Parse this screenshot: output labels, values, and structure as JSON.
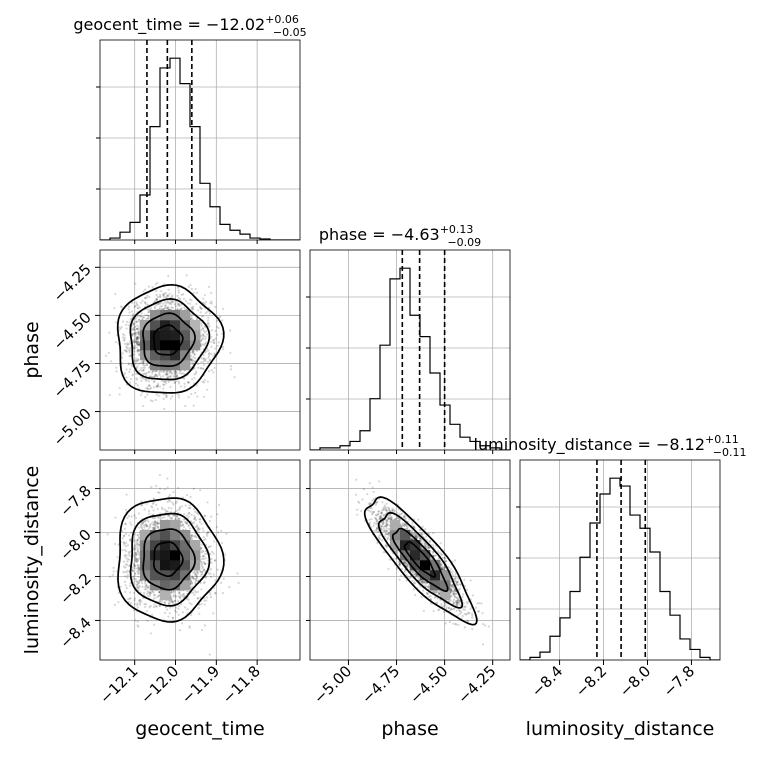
{
  "chart_data": {
    "type": "corner",
    "parameters": [
      "geocent_time",
      "phase",
      "luminosity_distance"
    ],
    "axis_labels": {
      "geocent_time": "geocent_time",
      "phase": "phase",
      "luminosity_distance": "luminosity_distance"
    },
    "titles": [
      {
        "param": "geocent_time",
        "prefix": "geocent_time = ",
        "median": "−12.02",
        "plus": "+0.06",
        "minus": "−0.05"
      },
      {
        "param": "phase",
        "prefix": "phase = ",
        "median": "−4.63",
        "plus": "+0.13",
        "minus": "−0.09"
      },
      {
        "param": "luminosity_distance",
        "prefix": "luminosity_distance = ",
        "median": "−8.12",
        "plus": "+0.11",
        "minus": "−0.11"
      }
    ],
    "ranges": {
      "geocent_time": [
        -12.185,
        -11.695
      ],
      "phase": [
        -5.2,
        -4.16
      ],
      "luminosity_distance": [
        -8.58,
        -7.67
      ]
    },
    "ticks": {
      "geocent_time": [
        {
          "v": -12.1,
          "label": "−12.1"
        },
        {
          "v": -12.0,
          "label": "−12.0"
        },
        {
          "v": -11.9,
          "label": "−11.9"
        },
        {
          "v": -11.8,
          "label": "−11.8"
        }
      ],
      "phase": [
        {
          "v": -5.0,
          "label": "−5.00"
        },
        {
          "v": -4.75,
          "label": "−4.75"
        },
        {
          "v": -4.5,
          "label": "−4.50"
        },
        {
          "v": -4.25,
          "label": "−4.25"
        }
      ],
      "luminosity_distance": [
        {
          "v": -8.4,
          "label": "−8.4"
        },
        {
          "v": -8.2,
          "label": "−8.2"
        },
        {
          "v": -8.0,
          "label": "−8.0"
        },
        {
          "v": -7.8,
          "label": "−7.8"
        }
      ]
    },
    "quantile_lines": {
      "geocent_time": [
        -12.07,
        -12.02,
        -11.96
      ],
      "phase": [
        -4.72,
        -4.63,
        -4.5
      ],
      "luminosity_distance": [
        -8.23,
        -8.12,
        -8.01
      ]
    },
    "histograms": {
      "geocent_time": {
        "edges_start": -12.185,
        "bin_width": 0.0245,
        "counts": [
          0,
          1,
          4,
          9,
          23,
          58,
          88,
          93,
          80,
          58,
          29,
          17,
          8,
          5,
          3,
          1,
          0.5,
          0,
          0,
          0
        ]
      },
      "phase": {
        "edges_start": -5.2,
        "bin_width": 0.052,
        "counts": [
          0,
          1,
          1,
          2,
          4,
          9,
          24,
          49,
          80,
          85,
          63,
          53,
          36,
          21,
          12,
          6,
          4,
          2,
          1,
          0
        ]
      },
      "luminosity_distance": {
        "edges_start": -8.58,
        "bin_width": 0.0455,
        "counts": [
          0,
          1,
          3,
          9,
          16,
          26,
          39,
          52,
          63,
          69,
          66,
          55,
          50,
          41,
          26,
          17,
          8,
          4,
          1,
          0
        ]
      }
    },
    "correlations": {
      "phase|geocent_time": 0.05,
      "luminosity_distance|geocent_time": 0.0,
      "luminosity_distance|phase": -0.85
    },
    "means": {
      "geocent_time": -12.02,
      "phase": -4.63,
      "luminosity_distance": -8.12
    },
    "stds": {
      "geocent_time": 0.05,
      "phase": 0.11,
      "luminosity_distance": 0.11
    },
    "grid": true
  }
}
